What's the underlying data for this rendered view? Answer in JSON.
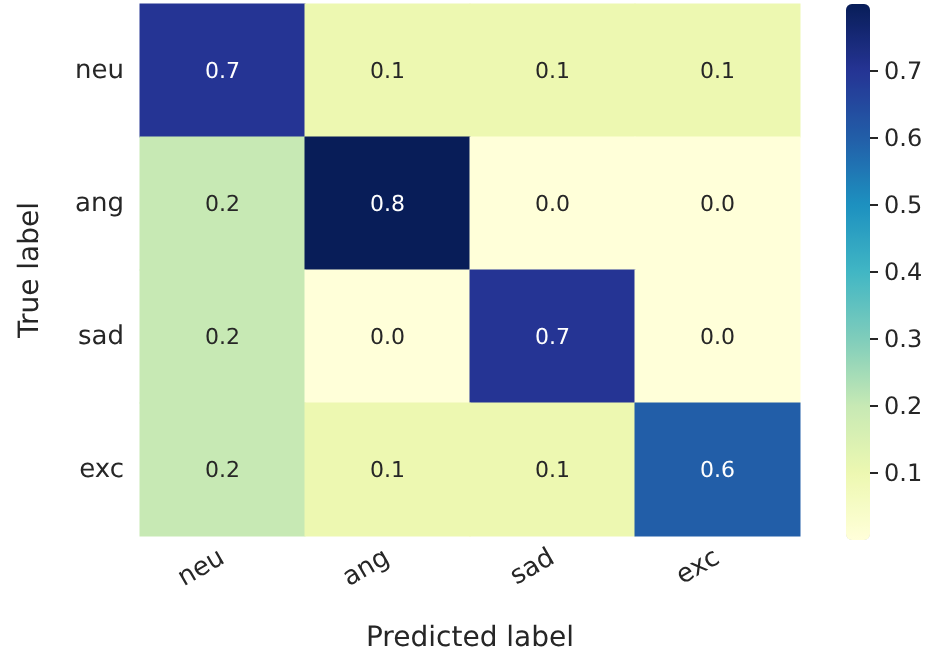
{
  "chart_data": {
    "type": "heatmap",
    "xlabel": "Predicted label",
    "ylabel": "True label",
    "categories": [
      "neu",
      "ang",
      "sad",
      "exc"
    ],
    "y_categories": [
      "neu",
      "ang",
      "sad",
      "exc"
    ],
    "cells": [
      [
        0.7,
        0.1,
        0.1,
        0.1
      ],
      [
        0.2,
        0.8,
        0.0,
        0.0
      ],
      [
        0.2,
        0.0,
        0.7,
        0.0
      ],
      [
        0.2,
        0.1,
        0.1,
        0.6
      ]
    ],
    "cell_labels": [
      [
        "0.7",
        "0.1",
        "0.1",
        "0.1"
      ],
      [
        "0.2",
        "0.8",
        "0.0",
        "0.0"
      ],
      [
        "0.2",
        "0.0",
        "0.7",
        "0.0"
      ],
      [
        "0.2",
        "0.1",
        "0.1",
        "0.6"
      ]
    ],
    "clim": [
      0,
      0.8
    ],
    "cticks": [
      0.1,
      0.2,
      0.3,
      0.4,
      0.5,
      0.6,
      0.7
    ],
    "data_labels": true
  }
}
